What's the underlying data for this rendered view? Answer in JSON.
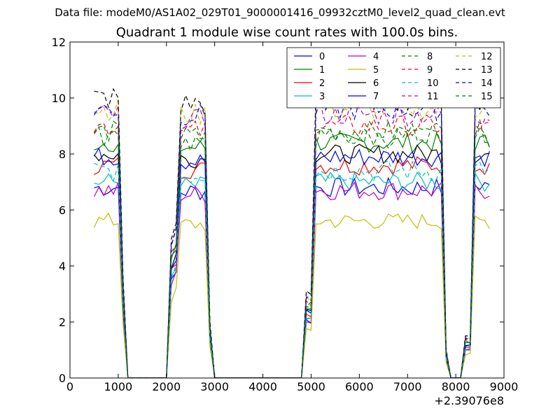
{
  "suptitle": "Data file: modeM0/AS1A02_029T01_9000001416_09932cztM0_level2_quad_clean.evt",
  "chart_data": {
    "type": "line",
    "title": "Quadrant 1 module wise count rates with 100.0s bins.",
    "xlabel": "",
    "ylabel": "",
    "x_offset_label": "+2.39076e8",
    "xlim": [
      0,
      9000
    ],
    "ylim": [
      0,
      12
    ],
    "xticks": [
      0,
      1000,
      2000,
      3000,
      4000,
      5000,
      6000,
      7000,
      8000,
      9000
    ],
    "yticks": [
      0,
      2,
      4,
      6,
      8,
      10,
      12
    ],
    "legend_position": "top-right",
    "x": [
      500,
      600,
      700,
      800,
      900,
      1000,
      1100,
      1200,
      1300,
      1400,
      1500,
      1600,
      1700,
      1800,
      1900,
      2000,
      2100,
      2200,
      2300,
      2400,
      2500,
      2600,
      2700,
      2800,
      2900,
      3000,
      3100,
      3200,
      3300,
      3400,
      3500,
      3600,
      3700,
      3800,
      3900,
      4000,
      4100,
      4200,
      4300,
      4400,
      4500,
      4600,
      4700,
      4800,
      4900,
      5000,
      5100,
      5200,
      5300,
      5400,
      5500,
      5600,
      5700,
      5800,
      5900,
      6000,
      6100,
      6200,
      6300,
      6400,
      6500,
      6600,
      6700,
      6800,
      6900,
      7000,
      7100,
      7200,
      7300,
      7400,
      7500,
      7600,
      7700,
      7800,
      7900,
      8000,
      8100,
      8200,
      8300,
      8400,
      8500,
      8600,
      8700
    ],
    "series": [
      {
        "name": "0",
        "color": "#0000ff",
        "dash": "solid",
        "level": 6.8,
        "noise": 0.35
      },
      {
        "name": "1",
        "color": "#008000",
        "dash": "solid",
        "level": 8.4,
        "noise": 0.35
      },
      {
        "name": "2",
        "color": "#ff0000",
        "dash": "solid",
        "level": 7.6,
        "noise": 0.35
      },
      {
        "name": "3",
        "color": "#00bfbf",
        "dash": "solid",
        "level": 7.0,
        "noise": 0.35
      },
      {
        "name": "4",
        "color": "#bf00bf",
        "dash": "solid",
        "level": 6.7,
        "noise": 0.35
      },
      {
        "name": "5",
        "color": "#bfbf00",
        "dash": "solid",
        "level": 5.6,
        "noise": 0.3
      },
      {
        "name": "6",
        "color": "#000000",
        "dash": "solid",
        "level": 8.0,
        "noise": 0.35
      },
      {
        "name": "7",
        "color": "#0000ff",
        "dash": "solid",
        "level": 7.9,
        "noise": 0.35
      },
      {
        "name": "8",
        "color": "#008000",
        "dash": "dashed",
        "level": 8.8,
        "noise": 0.4
      },
      {
        "name": "9",
        "color": "#ff0000",
        "dash": "dashed",
        "level": 9.0,
        "noise": 0.4
      },
      {
        "name": "10",
        "color": "#00bfbf",
        "dash": "dashed",
        "level": 7.4,
        "noise": 0.4
      },
      {
        "name": "11",
        "color": "#bf00bf",
        "dash": "dashed",
        "level": 9.4,
        "noise": 0.4
      },
      {
        "name": "12",
        "color": "#bfbf00",
        "dash": "dashed",
        "level": 9.6,
        "noise": 0.4
      },
      {
        "name": "13",
        "color": "#000000",
        "dash": "dashed",
        "level": 10.0,
        "noise": 0.45
      },
      {
        "name": "14",
        "color": "#0000ff",
        "dash": "dashed",
        "level": 9.6,
        "noise": 0.4
      },
      {
        "name": "15",
        "color": "#008000",
        "dash": "dashed",
        "level": 8.6,
        "noise": 0.4
      }
    ]
  }
}
